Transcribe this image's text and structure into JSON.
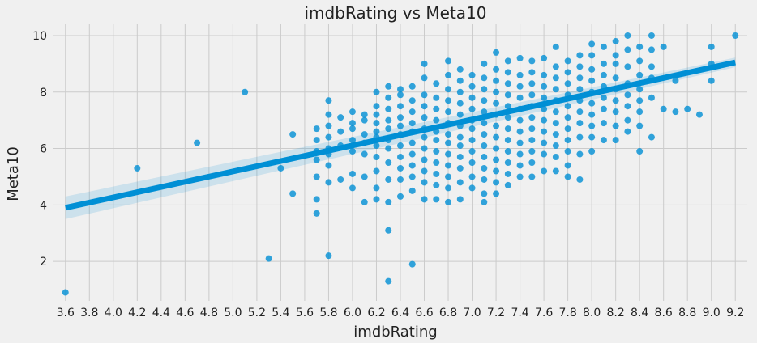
{
  "chart_data": {
    "type": "scatter",
    "title": "imdbRating vs Meta10",
    "xlabel": "imdbRating",
    "ylabel": "Meta10",
    "xlim": [
      3.5,
      9.3
    ],
    "ylim": [
      0.6,
      10.4
    ],
    "xticks": [
      "3.6",
      "3.8",
      "4.0",
      "4.2",
      "4.4",
      "4.6",
      "4.8",
      "5.0",
      "5.2",
      "5.4",
      "5.6",
      "5.8",
      "6.0",
      "6.2",
      "6.4",
      "6.6",
      "6.8",
      "7.0",
      "7.2",
      "7.4",
      "7.6",
      "7.8",
      "8.0",
      "8.2",
      "8.4",
      "8.6",
      "8.8",
      "9.0",
      "9.2"
    ],
    "yticks": [
      "2",
      "4",
      "6",
      "8",
      "10"
    ],
    "grid": true,
    "colors": {
      "points": "#008fd5",
      "background": "#f0f0f0",
      "grid": "#cbcbcb"
    },
    "regression": {
      "x": [
        3.6,
        9.2
      ],
      "y": [
        3.9,
        9.05
      ],
      "ci_lower": [
        3.5,
        8.88
      ],
      "ci_upper": [
        4.3,
        9.22
      ]
    },
    "points": [
      {
        "x": 3.6,
        "y": 0.9
      },
      {
        "x": 4.2,
        "y": 5.3
      },
      {
        "x": 4.7,
        "y": 6.2
      },
      {
        "x": 5.1,
        "y": 8.0
      },
      {
        "x": 5.3,
        "y": 2.1
      },
      {
        "x": 5.4,
        "y": 5.3
      },
      {
        "x": 5.5,
        "y": 4.4
      },
      {
        "x": 5.5,
        "y": 6.5
      },
      {
        "x": 5.7,
        "y": 3.7
      },
      {
        "x": 5.7,
        "y": 4.2
      },
      {
        "x": 5.7,
        "y": 5.0
      },
      {
        "x": 5.7,
        "y": 5.6
      },
      {
        "x": 5.7,
        "y": 5.9
      },
      {
        "x": 5.7,
        "y": 6.3
      },
      {
        "x": 5.7,
        "y": 6.7
      },
      {
        "x": 5.8,
        "y": 2.2
      },
      {
        "x": 5.8,
        "y": 4.8
      },
      {
        "x": 5.8,
        "y": 5.4
      },
      {
        "x": 5.8,
        "y": 5.8
      },
      {
        "x": 5.8,
        "y": 6.0
      },
      {
        "x": 5.8,
        "y": 6.4
      },
      {
        "x": 5.8,
        "y": 6.8
      },
      {
        "x": 5.8,
        "y": 7.2
      },
      {
        "x": 5.8,
        "y": 7.7
      },
      {
        "x": 5.9,
        "y": 4.9
      },
      {
        "x": 5.9,
        "y": 6.1
      },
      {
        "x": 5.9,
        "y": 6.6
      },
      {
        "x": 5.9,
        "y": 7.1
      },
      {
        "x": 6.0,
        "y": 4.6
      },
      {
        "x": 6.0,
        "y": 5.1
      },
      {
        "x": 6.0,
        "y": 5.9
      },
      {
        "x": 6.0,
        "y": 6.3
      },
      {
        "x": 6.0,
        "y": 6.7
      },
      {
        "x": 6.0,
        "y": 6.9
      },
      {
        "x": 6.0,
        "y": 7.3
      },
      {
        "x": 6.1,
        "y": 4.1
      },
      {
        "x": 6.1,
        "y": 5.0
      },
      {
        "x": 6.1,
        "y": 5.8
      },
      {
        "x": 6.1,
        "y": 6.2
      },
      {
        "x": 6.1,
        "y": 6.5
      },
      {
        "x": 6.1,
        "y": 7.0
      },
      {
        "x": 6.1,
        "y": 7.2
      },
      {
        "x": 6.2,
        "y": 4.2
      },
      {
        "x": 6.2,
        "y": 4.6
      },
      {
        "x": 6.2,
        "y": 5.2
      },
      {
        "x": 6.2,
        "y": 5.7
      },
      {
        "x": 6.2,
        "y": 6.1
      },
      {
        "x": 6.2,
        "y": 6.4
      },
      {
        "x": 6.2,
        "y": 6.6
      },
      {
        "x": 6.2,
        "y": 6.9
      },
      {
        "x": 6.2,
        "y": 7.2
      },
      {
        "x": 6.2,
        "y": 7.5
      },
      {
        "x": 6.2,
        "y": 8.0
      },
      {
        "x": 6.3,
        "y": 1.3
      },
      {
        "x": 6.3,
        "y": 3.1
      },
      {
        "x": 6.3,
        "y": 4.1
      },
      {
        "x": 6.3,
        "y": 4.9
      },
      {
        "x": 6.3,
        "y": 5.5
      },
      {
        "x": 6.3,
        "y": 6.0
      },
      {
        "x": 6.3,
        "y": 6.3
      },
      {
        "x": 6.3,
        "y": 6.7
      },
      {
        "x": 6.3,
        "y": 7.0
      },
      {
        "x": 6.3,
        "y": 7.4
      },
      {
        "x": 6.3,
        "y": 7.8
      },
      {
        "x": 6.3,
        "y": 8.2
      },
      {
        "x": 6.4,
        "y": 4.3
      },
      {
        "x": 6.4,
        "y": 4.9
      },
      {
        "x": 6.4,
        "y": 5.3
      },
      {
        "x": 6.4,
        "y": 5.7
      },
      {
        "x": 6.4,
        "y": 6.1
      },
      {
        "x": 6.4,
        "y": 6.5
      },
      {
        "x": 6.4,
        "y": 6.8
      },
      {
        "x": 6.4,
        "y": 7.1
      },
      {
        "x": 6.4,
        "y": 7.5
      },
      {
        "x": 6.4,
        "y": 7.9
      },
      {
        "x": 6.4,
        "y": 8.1
      },
      {
        "x": 6.5,
        "y": 1.9
      },
      {
        "x": 6.5,
        "y": 4.5
      },
      {
        "x": 6.5,
        "y": 5.0
      },
      {
        "x": 6.5,
        "y": 5.4
      },
      {
        "x": 6.5,
        "y": 5.8
      },
      {
        "x": 6.5,
        "y": 6.2
      },
      {
        "x": 6.5,
        "y": 6.6
      },
      {
        "x": 6.5,
        "y": 6.9
      },
      {
        "x": 6.5,
        "y": 7.3
      },
      {
        "x": 6.5,
        "y": 7.7
      },
      {
        "x": 6.5,
        "y": 8.2
      },
      {
        "x": 6.6,
        "y": 4.2
      },
      {
        "x": 6.6,
        "y": 4.8
      },
      {
        "x": 6.6,
        "y": 5.2
      },
      {
        "x": 6.6,
        "y": 5.6
      },
      {
        "x": 6.6,
        "y": 6.0
      },
      {
        "x": 6.6,
        "y": 6.4
      },
      {
        "x": 6.6,
        "y": 6.7
      },
      {
        "x": 6.6,
        "y": 7.1
      },
      {
        "x": 6.6,
        "y": 7.5
      },
      {
        "x": 6.6,
        "y": 7.9
      },
      {
        "x": 6.6,
        "y": 8.5
      },
      {
        "x": 6.6,
        "y": 9.0
      },
      {
        "x": 6.7,
        "y": 4.2
      },
      {
        "x": 6.7,
        "y": 4.7
      },
      {
        "x": 6.7,
        "y": 5.1
      },
      {
        "x": 6.7,
        "y": 5.5
      },
      {
        "x": 6.7,
        "y": 5.9
      },
      {
        "x": 6.7,
        "y": 6.3
      },
      {
        "x": 6.7,
        "y": 6.6
      },
      {
        "x": 6.7,
        "y": 7.0
      },
      {
        "x": 6.7,
        "y": 7.4
      },
      {
        "x": 6.7,
        "y": 7.8
      },
      {
        "x": 6.7,
        "y": 8.3
      },
      {
        "x": 6.8,
        "y": 4.1
      },
      {
        "x": 6.8,
        "y": 4.6
      },
      {
        "x": 6.8,
        "y": 5.0
      },
      {
        "x": 6.8,
        "y": 5.4
      },
      {
        "x": 6.8,
        "y": 5.8
      },
      {
        "x": 6.8,
        "y": 6.2
      },
      {
        "x": 6.8,
        "y": 6.5
      },
      {
        "x": 6.8,
        "y": 6.9
      },
      {
        "x": 6.8,
        "y": 7.3
      },
      {
        "x": 6.8,
        "y": 7.7
      },
      {
        "x": 6.8,
        "y": 8.1
      },
      {
        "x": 6.8,
        "y": 8.6
      },
      {
        "x": 6.8,
        "y": 9.1
      },
      {
        "x": 6.9,
        "y": 4.2
      },
      {
        "x": 6.9,
        "y": 4.8
      },
      {
        "x": 6.9,
        "y": 5.3
      },
      {
        "x": 6.9,
        "y": 5.7
      },
      {
        "x": 6.9,
        "y": 6.1
      },
      {
        "x": 6.9,
        "y": 6.4
      },
      {
        "x": 6.9,
        "y": 6.8
      },
      {
        "x": 6.9,
        "y": 7.2
      },
      {
        "x": 6.9,
        "y": 7.6
      },
      {
        "x": 6.9,
        "y": 8.0
      },
      {
        "x": 6.9,
        "y": 8.4
      },
      {
        "x": 6.9,
        "y": 8.8
      },
      {
        "x": 7.0,
        "y": 4.6
      },
      {
        "x": 7.0,
        "y": 5.0
      },
      {
        "x": 7.0,
        "y": 5.5
      },
      {
        "x": 7.0,
        "y": 5.9
      },
      {
        "x": 7.0,
        "y": 6.3
      },
      {
        "x": 7.0,
        "y": 6.7
      },
      {
        "x": 7.0,
        "y": 7.0
      },
      {
        "x": 7.0,
        "y": 7.4
      },
      {
        "x": 7.0,
        "y": 7.8
      },
      {
        "x": 7.0,
        "y": 8.2
      },
      {
        "x": 7.0,
        "y": 8.6
      },
      {
        "x": 7.1,
        "y": 4.1
      },
      {
        "x": 7.1,
        "y": 4.4
      },
      {
        "x": 7.1,
        "y": 4.9
      },
      {
        "x": 7.1,
        "y": 5.3
      },
      {
        "x": 7.1,
        "y": 5.7
      },
      {
        "x": 7.1,
        "y": 6.1
      },
      {
        "x": 7.1,
        "y": 6.5
      },
      {
        "x": 7.1,
        "y": 6.9
      },
      {
        "x": 7.1,
        "y": 7.3
      },
      {
        "x": 7.1,
        "y": 7.7
      },
      {
        "x": 7.1,
        "y": 8.1
      },
      {
        "x": 7.1,
        "y": 8.5
      },
      {
        "x": 7.1,
        "y": 9.0
      },
      {
        "x": 7.2,
        "y": 4.4
      },
      {
        "x": 7.2,
        "y": 4.8
      },
      {
        "x": 7.2,
        "y": 5.2
      },
      {
        "x": 7.2,
        "y": 5.6
      },
      {
        "x": 7.2,
        "y": 6.0
      },
      {
        "x": 7.2,
        "y": 6.4
      },
      {
        "x": 7.2,
        "y": 6.8
      },
      {
        "x": 7.2,
        "y": 7.2
      },
      {
        "x": 7.2,
        "y": 7.6
      },
      {
        "x": 7.2,
        "y": 8.0
      },
      {
        "x": 7.2,
        "y": 8.4
      },
      {
        "x": 7.2,
        "y": 8.8
      },
      {
        "x": 7.2,
        "y": 9.4
      },
      {
        "x": 7.3,
        "y": 4.7
      },
      {
        "x": 7.3,
        "y": 5.1
      },
      {
        "x": 7.3,
        "y": 5.5
      },
      {
        "x": 7.3,
        "y": 5.9
      },
      {
        "x": 7.3,
        "y": 6.3
      },
      {
        "x": 7.3,
        "y": 6.7
      },
      {
        "x": 7.3,
        "y": 7.1
      },
      {
        "x": 7.3,
        "y": 7.5
      },
      {
        "x": 7.3,
        "y": 7.9
      },
      {
        "x": 7.3,
        "y": 8.3
      },
      {
        "x": 7.3,
        "y": 8.7
      },
      {
        "x": 7.3,
        "y": 9.1
      },
      {
        "x": 7.4,
        "y": 5.0
      },
      {
        "x": 7.4,
        "y": 5.4
      },
      {
        "x": 7.4,
        "y": 5.8
      },
      {
        "x": 7.4,
        "y": 6.2
      },
      {
        "x": 7.4,
        "y": 6.6
      },
      {
        "x": 7.4,
        "y": 7.0
      },
      {
        "x": 7.4,
        "y": 7.4
      },
      {
        "x": 7.4,
        "y": 7.8
      },
      {
        "x": 7.4,
        "y": 8.2
      },
      {
        "x": 7.4,
        "y": 8.6
      },
      {
        "x": 7.4,
        "y": 9.2
      },
      {
        "x": 7.5,
        "y": 5.0
      },
      {
        "x": 7.5,
        "y": 5.5
      },
      {
        "x": 7.5,
        "y": 5.9
      },
      {
        "x": 7.5,
        "y": 6.3
      },
      {
        "x": 7.5,
        "y": 6.7
      },
      {
        "x": 7.5,
        "y": 7.1
      },
      {
        "x": 7.5,
        "y": 7.5
      },
      {
        "x": 7.5,
        "y": 7.9
      },
      {
        "x": 7.5,
        "y": 8.3
      },
      {
        "x": 7.5,
        "y": 8.7
      },
      {
        "x": 7.5,
        "y": 9.1
      },
      {
        "x": 7.6,
        "y": 5.2
      },
      {
        "x": 7.6,
        "y": 5.8
      },
      {
        "x": 7.6,
        "y": 6.2
      },
      {
        "x": 7.6,
        "y": 6.6
      },
      {
        "x": 7.6,
        "y": 7.0
      },
      {
        "x": 7.6,
        "y": 7.4
      },
      {
        "x": 7.6,
        "y": 7.8
      },
      {
        "x": 7.6,
        "y": 8.2
      },
      {
        "x": 7.6,
        "y": 8.6
      },
      {
        "x": 7.6,
        "y": 9.2
      },
      {
        "x": 7.7,
        "y": 5.2
      },
      {
        "x": 7.7,
        "y": 5.7
      },
      {
        "x": 7.7,
        "y": 6.1
      },
      {
        "x": 7.7,
        "y": 6.5
      },
      {
        "x": 7.7,
        "y": 6.9
      },
      {
        "x": 7.7,
        "y": 7.3
      },
      {
        "x": 7.7,
        "y": 7.7
      },
      {
        "x": 7.7,
        "y": 8.1
      },
      {
        "x": 7.7,
        "y": 8.5
      },
      {
        "x": 7.7,
        "y": 8.9
      },
      {
        "x": 7.7,
        "y": 9.6
      },
      {
        "x": 7.8,
        "y": 5.0
      },
      {
        "x": 7.8,
        "y": 5.4
      },
      {
        "x": 7.8,
        "y": 5.9
      },
      {
        "x": 7.8,
        "y": 6.3
      },
      {
        "x": 7.8,
        "y": 6.7
      },
      {
        "x": 7.8,
        "y": 7.1
      },
      {
        "x": 7.8,
        "y": 7.5
      },
      {
        "x": 7.8,
        "y": 7.9
      },
      {
        "x": 7.8,
        "y": 8.3
      },
      {
        "x": 7.8,
        "y": 8.7
      },
      {
        "x": 7.8,
        "y": 9.1
      },
      {
        "x": 7.9,
        "y": 4.9
      },
      {
        "x": 7.9,
        "y": 5.8
      },
      {
        "x": 7.9,
        "y": 6.4
      },
      {
        "x": 7.9,
        "y": 6.9
      },
      {
        "x": 7.9,
        "y": 7.3
      },
      {
        "x": 7.9,
        "y": 7.7
      },
      {
        "x": 7.9,
        "y": 8.1
      },
      {
        "x": 7.9,
        "y": 8.5
      },
      {
        "x": 7.9,
        "y": 8.9
      },
      {
        "x": 7.9,
        "y": 9.3
      },
      {
        "x": 8.0,
        "y": 5.9
      },
      {
        "x": 8.0,
        "y": 6.4
      },
      {
        "x": 8.0,
        "y": 6.8
      },
      {
        "x": 8.0,
        "y": 7.2
      },
      {
        "x": 8.0,
        "y": 7.6
      },
      {
        "x": 8.0,
        "y": 8.0
      },
      {
        "x": 8.0,
        "y": 8.4
      },
      {
        "x": 8.0,
        "y": 8.8
      },
      {
        "x": 8.0,
        "y": 9.3
      },
      {
        "x": 8.0,
        "y": 9.7
      },
      {
        "x": 8.1,
        "y": 6.3
      },
      {
        "x": 8.1,
        "y": 6.9
      },
      {
        "x": 8.1,
        "y": 7.4
      },
      {
        "x": 8.1,
        "y": 7.8
      },
      {
        "x": 8.1,
        "y": 8.2
      },
      {
        "x": 8.1,
        "y": 8.6
      },
      {
        "x": 8.1,
        "y": 9.0
      },
      {
        "x": 8.1,
        "y": 9.6
      },
      {
        "x": 8.2,
        "y": 6.3
      },
      {
        "x": 8.2,
        "y": 6.8
      },
      {
        "x": 8.2,
        "y": 7.3
      },
      {
        "x": 8.2,
        "y": 7.7
      },
      {
        "x": 8.2,
        "y": 8.1
      },
      {
        "x": 8.2,
        "y": 8.5
      },
      {
        "x": 8.2,
        "y": 9.0
      },
      {
        "x": 8.2,
        "y": 9.3
      },
      {
        "x": 8.2,
        "y": 9.8
      },
      {
        "x": 8.3,
        "y": 6.6
      },
      {
        "x": 8.3,
        "y": 7.0
      },
      {
        "x": 8.3,
        "y": 7.5
      },
      {
        "x": 8.3,
        "y": 7.9
      },
      {
        "x": 8.3,
        "y": 8.3
      },
      {
        "x": 8.3,
        "y": 8.9
      },
      {
        "x": 8.3,
        "y": 9.5
      },
      {
        "x": 8.3,
        "y": 10.0
      },
      {
        "x": 8.4,
        "y": 5.9
      },
      {
        "x": 8.4,
        "y": 6.8
      },
      {
        "x": 8.4,
        "y": 7.3
      },
      {
        "x": 8.4,
        "y": 7.7
      },
      {
        "x": 8.4,
        "y": 8.1
      },
      {
        "x": 8.4,
        "y": 8.6
      },
      {
        "x": 8.4,
        "y": 9.1
      },
      {
        "x": 8.4,
        "y": 9.6
      },
      {
        "x": 8.5,
        "y": 6.4
      },
      {
        "x": 8.5,
        "y": 7.8
      },
      {
        "x": 8.5,
        "y": 8.5
      },
      {
        "x": 8.5,
        "y": 8.9
      },
      {
        "x": 8.5,
        "y": 9.5
      },
      {
        "x": 8.5,
        "y": 10.0
      },
      {
        "x": 8.6,
        "y": 7.4
      },
      {
        "x": 8.6,
        "y": 9.6
      },
      {
        "x": 8.7,
        "y": 7.3
      },
      {
        "x": 8.7,
        "y": 8.4
      },
      {
        "x": 8.8,
        "y": 7.4
      },
      {
        "x": 8.9,
        "y": 7.2
      },
      {
        "x": 9.0,
        "y": 8.4
      },
      {
        "x": 9.0,
        "y": 9.0
      },
      {
        "x": 9.0,
        "y": 9.6
      },
      {
        "x": 9.2,
        "y": 10.0
      }
    ]
  }
}
